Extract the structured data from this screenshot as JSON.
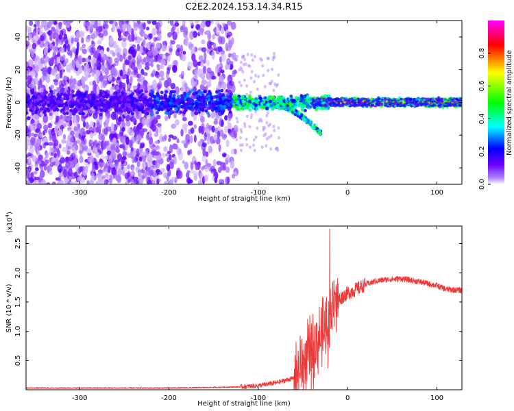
{
  "title": "C2E2.2024.153.14.34.R15",
  "colors": {
    "snr_line": "#f03a3a",
    "axis": "#000000",
    "colormap": [
      "#ffffff",
      "#6a00ff",
      "#0000ff",
      "#00ffff",
      "#00ff00",
      "#ffff00",
      "#ff0000",
      "#ff00ff"
    ]
  },
  "chart_data": [
    {
      "type": "heatmap",
      "title": "C2E2.2024.153.14.34.R15",
      "xlabel": "Height of straight line (km)",
      "ylabel": "Frequency (Hz)",
      "xlim": [
        -360,
        128
      ],
      "ylim": [
        -50,
        50
      ],
      "xticks": [
        -300,
        -200,
        -100,
        0,
        100
      ],
      "xtick_labels": [
        "-300",
        "-200",
        "-100",
        "0",
        "100"
      ],
      "yticks": [
        -40,
        -20,
        0,
        20,
        40
      ],
      "ytick_labels": [
        "-40",
        "-20",
        "0",
        "20",
        "40"
      ],
      "colorbar": {
        "label": "Normalized spectral amplitude",
        "range": [
          0,
          1
        ],
        "ticks": [
          0,
          0.2,
          0.4,
          0.6,
          0.8
        ],
        "tick_labels": [
          "0.0",
          "0.2",
          "0.4",
          "0.6",
          "0.8"
        ]
      },
      "grid": false,
      "features": {
        "noise_region_km": [
          -360,
          -125
        ],
        "signal_line_hz": 0,
        "chirp_tail_end": {
          "x": -30,
          "y": -20
        }
      }
    },
    {
      "type": "line",
      "xlabel": "Height of straight line (km)",
      "ylabel": "SNR (10 * v/v)",
      "exponent_label": "(x10",
      "exponent_power": "4",
      "exponent_close": ")",
      "xlim": [
        -360,
        128
      ],
      "ylim": [
        0,
        2.8
      ],
      "xticks": [
        -300,
        -200,
        -100,
        0,
        100
      ],
      "xtick_labels": [
        "-300",
        "-200",
        "-100",
        "0",
        "100"
      ],
      "yticks": [
        0.5,
        1.0,
        1.5,
        2.0,
        2.5
      ],
      "ytick_labels": [
        "0.5",
        "1.0",
        "1.5",
        "2.0",
        "2.5"
      ],
      "grid": false,
      "series": [
        {
          "x": [
            -360,
            -300,
            -200,
            -150,
            -120,
            -100,
            -80,
            -60,
            -50,
            -45,
            -40,
            -35,
            -30,
            -25,
            -22,
            -20,
            -18,
            -15,
            -10,
            -5,
            0,
            10,
            20,
            30,
            40,
            60,
            80,
            100,
            110,
            128
          ],
          "y": [
            0.03,
            0.03,
            0.03,
            0.04,
            0.05,
            0.07,
            0.12,
            0.2,
            0.45,
            0.55,
            0.65,
            0.8,
            0.9,
            1.0,
            1.1,
            1.25,
            1.35,
            1.45,
            1.55,
            1.6,
            1.65,
            1.72,
            1.8,
            1.85,
            1.88,
            1.9,
            1.85,
            1.78,
            1.72,
            1.7
          ]
        }
      ],
      "annotations": {
        "peak": {
          "x": -20,
          "y": 2.75
        }
      }
    }
  ]
}
